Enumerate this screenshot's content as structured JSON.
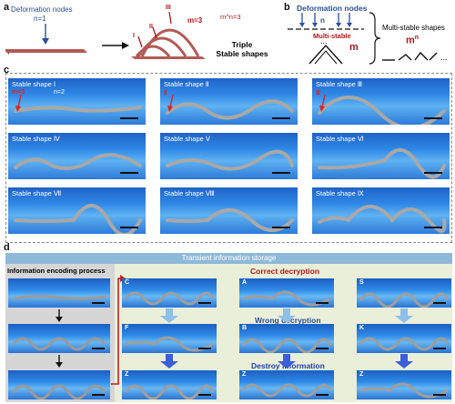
{
  "panel_a": {
    "label": "a",
    "nodes_label": "Deformation nodes",
    "n_label": "n=1",
    "markers": [
      "I",
      "II",
      "III"
    ],
    "m_label": "m=3",
    "mn_label": "m^n=3",
    "result_line1": "Triple",
    "result_line2": "Stable shapes"
  },
  "panel_b": {
    "label": "b",
    "nodes_label": "Deformation nodes",
    "n_label": "n",
    "multi_stable": "Multi-stable",
    "dots": "...",
    "m_label": "m",
    "shapes_label": "Multi-stable shapes",
    "mn_base": "m",
    "mn_exp": "n",
    "ellipsis": "..."
  },
  "panel_c": {
    "label": "c",
    "tiles": [
      {
        "label": "Stable shape Ⅰ",
        "extra1": "m=3",
        "extra2": "n=2"
      },
      {
        "label": "Stable shape Ⅱ",
        "extra1": "Ⅱ"
      },
      {
        "label": "Stable shape Ⅲ",
        "extra1": "Ⅲ"
      },
      {
        "label": "Stable shape Ⅳ"
      },
      {
        "label": "Stable shape Ⅴ"
      },
      {
        "label": "Stable shape Ⅵ"
      },
      {
        "label": "Stable shape Ⅶ"
      },
      {
        "label": "Stable shape Ⅷ"
      },
      {
        "label": "Stable shape Ⅸ"
      }
    ]
  },
  "panel_d": {
    "label": "d",
    "header": "Transient information storage",
    "left_title": "Information encoding process",
    "correct": "Correct decryption",
    "wrong": "Wrong decryption",
    "destroy": "Destroy information",
    "col1": [
      "C",
      "F",
      "Z"
    ],
    "col2": [
      "A",
      "B",
      "Z"
    ],
    "col3": [
      "S",
      "K",
      "Z"
    ]
  }
}
